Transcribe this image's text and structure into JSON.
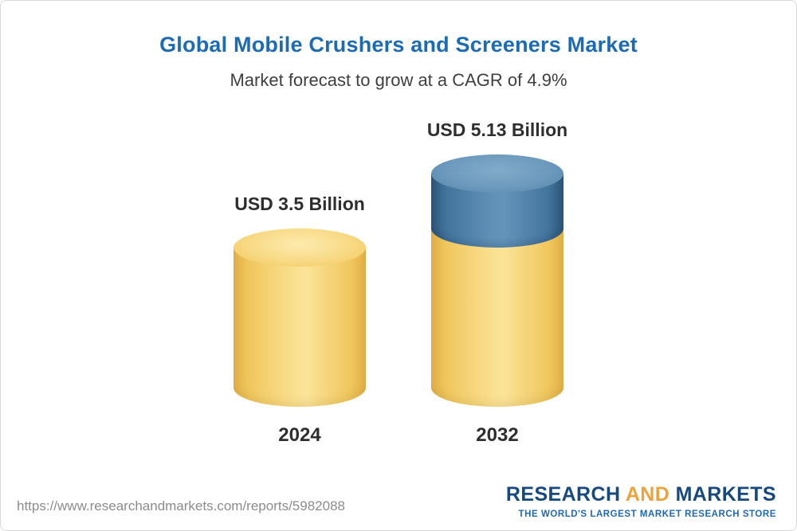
{
  "header": {
    "title": "Global Mobile Crushers and Screeners Market",
    "subtitle": "Market forecast to grow at a CAGR of 4.9%"
  },
  "chart_data": {
    "type": "bar",
    "subtype": "3d-cylinder",
    "title": "Global Mobile Crushers and Screeners Market",
    "subtitle": "Market forecast to grow at a CAGR of 4.9%",
    "categories": [
      "2024",
      "2032"
    ],
    "values": [
      3.5,
      5.13
    ],
    "value_labels": [
      "USD 3.5 Billion",
      "USD 5.13 Billion"
    ],
    "unit": "USD Billion",
    "cagr_percent": 4.9,
    "ylim": [
      0,
      5.13
    ],
    "legend": "none",
    "grid": false,
    "colors": {
      "base_segment": "#f2cb62",
      "growth_segment": "#44759e"
    },
    "notes": "2032 bar shows base value (yellow, equal to 2024 level) plus growth segment (blue) stacked on top"
  },
  "footer": {
    "url": "https://www.researchandmarkets.com/reports/5982088",
    "logo": {
      "part1": "RESEARCH",
      "part2": "AND",
      "part3": "MARKETS",
      "tagline": "THE WORLD'S LARGEST MARKET RESEARCH STORE"
    }
  }
}
